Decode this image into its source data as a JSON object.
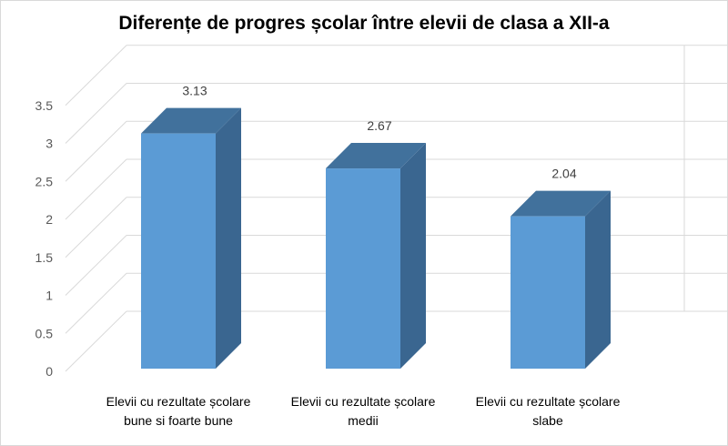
{
  "chart_data": {
    "type": "bar",
    "title": "Diferențe de progres școlar între elevii de clasa a XII-a",
    "categories": [
      [
        "Elevii cu rezultate școlare",
        "bune si foarte bune"
      ],
      [
        "Elevii cu rezultate școlare",
        "medii"
      ],
      [
        "Elevii cu rezultate școlare",
        "slabe"
      ]
    ],
    "values": [
      3.13,
      2.67,
      2.04
    ],
    "value_labels": [
      "3.13",
      "2.67",
      "2.04"
    ],
    "ylim": [
      0,
      3.5
    ],
    "yticks": [
      "0",
      "0.5",
      "1",
      "1.5",
      "2",
      "2.5",
      "3",
      "3.5"
    ],
    "xlabel": "",
    "ylabel": "",
    "grid": true,
    "style": "3d-column",
    "colors": {
      "bar_front": "#5b9bd5",
      "bar_side": "#3a6690",
      "bar_top": "#41719c",
      "grid": "#d9d9d9"
    }
  }
}
